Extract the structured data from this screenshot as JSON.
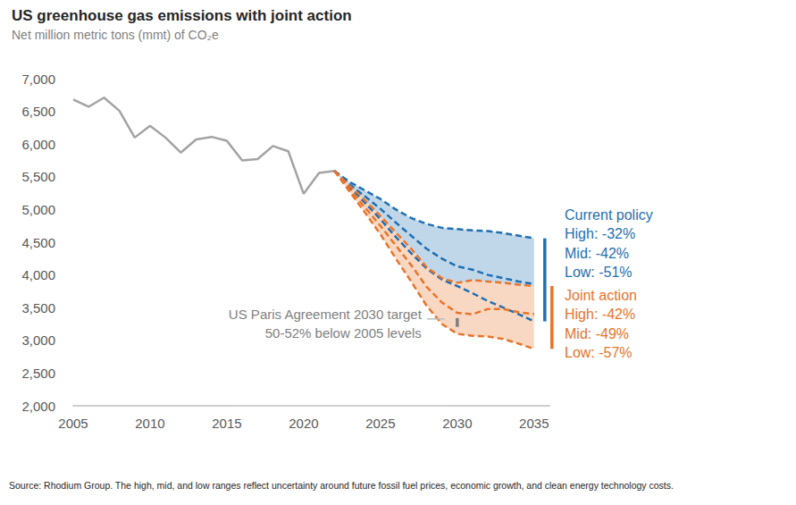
{
  "chart_data": {
    "type": "line",
    "title": "US greenhouse gas emissions with joint action",
    "subtitle": "Net million metric tons (mmt) of CO₂e",
    "note": "Source: Rhodium Group. The high, mid, and low ranges reflect uncertainty around future fossil fuel prices, economic growth, and clean energy technology costs.",
    "x": [
      2005,
      2006,
      2007,
      2008,
      2009,
      2010,
      2011,
      2012,
      2013,
      2014,
      2015,
      2016,
      2017,
      2018,
      2019,
      2020,
      2021,
      2022,
      2023,
      2024,
      2025,
      2026,
      2027,
      2028,
      2029,
      2030,
      2031,
      2032,
      2033,
      2034,
      2035
    ],
    "xlim": [
      2005,
      2036
    ],
    "xticks": [
      2005,
      2010,
      2015,
      2020,
      2025,
      2030,
      2035
    ],
    "ylim": [
      2000,
      7000
    ],
    "yticks": [
      {
        "value": 2000,
        "label": "2,000"
      },
      {
        "value": 2500,
        "label": "2,500"
      },
      {
        "value": 3000,
        "label": "3,000"
      },
      {
        "value": 3500,
        "label": "3,500"
      },
      {
        "value": 4000,
        "label": "4,000"
      },
      {
        "value": 4500,
        "label": "4,500"
      },
      {
        "value": 5000,
        "label": "5,000"
      },
      {
        "value": 5500,
        "label": "5,500"
      },
      {
        "value": 6000,
        "label": "6,000"
      },
      {
        "value": 6500,
        "label": "6,500"
      },
      {
        "value": 7000,
        "label": "7,000"
      }
    ],
    "grid": false,
    "groups": [
      {
        "name": "Current policy",
        "color": "#1f6fb2"
      },
      {
        "name": "Joint action",
        "color": "#e8742a"
      }
    ],
    "series": [
      {
        "color": "#a3a3a3",
        "line_style": "solid",
        "values": [
          6680,
          6570,
          6710,
          6510,
          6100,
          6280,
          6100,
          5870,
          6070,
          6110,
          6050,
          5750,
          5770,
          5970,
          5890,
          5240,
          5560,
          5590,
          null,
          null,
          null,
          null,
          null,
          null,
          null,
          null,
          null,
          null,
          null,
          null,
          null
        ]
      },
      {
        "group": "Current policy",
        "label": "High: -32%",
        "color": "#1f6fb2",
        "line_style": "dashed",
        "values": [
          null,
          null,
          null,
          null,
          null,
          null,
          null,
          null,
          null,
          null,
          null,
          null,
          null,
          null,
          null,
          null,
          null,
          5590,
          5420,
          5290,
          5160,
          5000,
          4870,
          4780,
          4720,
          4700,
          4680,
          4670,
          4640,
          4600,
          4560
        ]
      },
      {
        "group": "Current policy",
        "label": "Mid: -42%",
        "color": "#1f6fb2",
        "line_style": "dashed",
        "values": [
          null,
          null,
          null,
          null,
          null,
          null,
          null,
          null,
          null,
          null,
          null,
          null,
          null,
          null,
          null,
          null,
          null,
          5590,
          5380,
          5200,
          5010,
          4800,
          4600,
          4400,
          4250,
          4130,
          4080,
          4000,
          3950,
          3900,
          3860
        ]
      },
      {
        "group": "Current policy",
        "label": "Low: -51%",
        "color": "#1f6fb2",
        "line_style": "dashed",
        "values": [
          null,
          null,
          null,
          null,
          null,
          null,
          null,
          null,
          null,
          null,
          null,
          null,
          null,
          null,
          null,
          null,
          null,
          5590,
          5340,
          5100,
          4850,
          4580,
          4330,
          4100,
          3930,
          3830,
          3720,
          3600,
          3500,
          3400,
          3290
        ]
      },
      {
        "group": "Joint action",
        "label": "High: -42%",
        "color": "#e8742a",
        "line_style": "dashed",
        "values": [
          null,
          null,
          null,
          null,
          null,
          null,
          null,
          null,
          null,
          null,
          null,
          null,
          null,
          null,
          null,
          null,
          null,
          5590,
          5360,
          5140,
          4900,
          4650,
          4400,
          4120,
          3950,
          3880,
          3920,
          3900,
          3880,
          3850,
          3830
        ]
      },
      {
        "group": "Joint action",
        "label": "Mid: -49%",
        "color": "#e8742a",
        "line_style": "dashed",
        "values": [
          null,
          null,
          null,
          null,
          null,
          null,
          null,
          null,
          null,
          null,
          null,
          null,
          null,
          null,
          null,
          null,
          null,
          5590,
          5300,
          5030,
          4750,
          4450,
          4150,
          3820,
          3580,
          3420,
          3400,
          3480,
          3480,
          3430,
          3400
        ]
      },
      {
        "group": "Joint action",
        "label": "Low: -57%",
        "color": "#e8742a",
        "line_style": "dashed",
        "values": [
          null,
          null,
          null,
          null,
          null,
          null,
          null,
          null,
          null,
          null,
          null,
          null,
          null,
          null,
          null,
          null,
          null,
          5590,
          5270,
          4950,
          4620,
          4250,
          3900,
          3530,
          3250,
          3100,
          3070,
          3060,
          3020,
          2950,
          2870
        ]
      }
    ],
    "annotation": {
      "lines": [
        "US Paris Agreement 2030 target",
        "50-52% below 2005 levels"
      ],
      "x": 2030,
      "range": [
        3206,
        3340
      ]
    }
  }
}
